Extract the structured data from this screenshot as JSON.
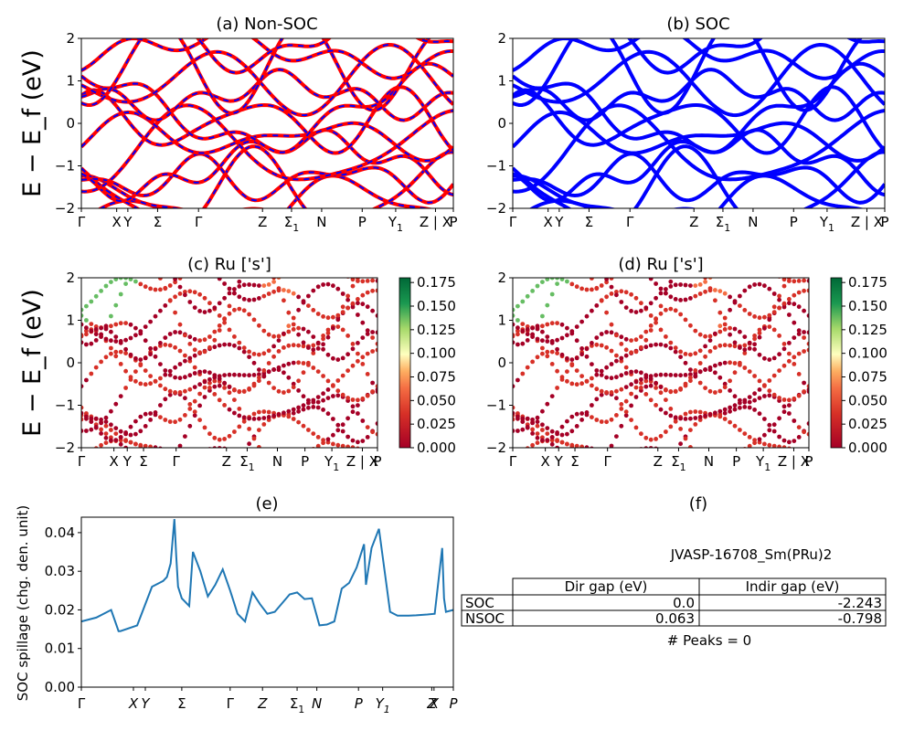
{
  "figure": {
    "title_a": "(a) Non-SOC",
    "title_b": "(b) SOC",
    "title_c": "(c)  Ru ['s']",
    "title_d": "(d) Ru ['s']",
    "title_e": "(e)",
    "title_f": "(f)",
    "ylabel_band": "E − E_f (eV)",
    "ylabel_spill": "SOC spillage (chg. den. unit)",
    "kpath_labels": [
      "Γ",
      "X",
      "Y",
      "Σ",
      "Γ",
      "Z",
      "Σ1",
      "N",
      "P",
      "Y1",
      "Z | X",
      "P"
    ],
    "e_xticks": [
      "Γ",
      "X",
      "Y",
      "Σ",
      "Γ",
      "Z",
      "Σ1",
      "N",
      "P",
      "Y1",
      "Z",
      "X",
      "P"
    ],
    "band_yticks": [
      "2",
      "1",
      "0",
      "−1",
      "−2"
    ],
    "colorbar_ticks": [
      "0.175",
      "0.150",
      "0.125",
      "0.100",
      "0.075",
      "0.050",
      "0.025",
      "0.000"
    ],
    "spill_yticks": [
      "0.04",
      "0.03",
      "0.02",
      "0.01",
      "0.00"
    ],
    "colors": {
      "nsoc": "#ff0000",
      "nsoc_dash": "#0000ff",
      "soc": "#0000ff",
      "spill": "#1f77b4"
    }
  },
  "panel_f": {
    "material": "JVASP-16708_Sm(PRu)2",
    "col_headers": [
      "Dir gap (eV)",
      "Indir gap (eV)"
    ],
    "rows": [
      {
        "label": "SOC",
        "dir": "0.0",
        "indir": "-2.243"
      },
      {
        "label": "NSOC",
        "dir": "0.063",
        "indir": "-0.798"
      }
    ],
    "peaks": "# Peaks = 0"
  },
  "chart_data": [
    {
      "type": "line",
      "title": "(a) Non-SOC",
      "ylabel": "E − E_f (eV)",
      "ylim": [
        -2,
        2
      ],
      "categories": [
        "Γ",
        "X",
        "Y",
        "Σ",
        "Γ",
        "Z",
        "Σ1",
        "N",
        "P",
        "Y1",
        "Z | X",
        "P"
      ],
      "note_series": "band structure, red solid with blue dashes"
    },
    {
      "type": "line",
      "title": "(b) SOC",
      "ylim": [
        -2,
        2
      ],
      "categories": [
        "Γ",
        "X",
        "Y",
        "Σ",
        "Γ",
        "Z",
        "Σ1",
        "N",
        "P",
        "Y1",
        "Z | X",
        "P"
      ]
    },
    {
      "type": "scatter",
      "title": "(c)  Ru ['s']",
      "ylim": [
        -2,
        2
      ],
      "colorbar_range": [
        0,
        0.18
      ]
    },
    {
      "type": "scatter",
      "title": "(d) Ru ['s']",
      "ylim": [
        -2,
        2
      ],
      "colorbar_range": [
        0,
        0.18
      ]
    },
    {
      "type": "line",
      "title": "(e)",
      "ylabel": "SOC spillage (chg. den. unit)",
      "ylim": [
        0,
        0.044
      ],
      "x": [
        0,
        0.04,
        0.08,
        0.1,
        0.105,
        0.15,
        0.19,
        0.21,
        0.22,
        0.23,
        0.24,
        0.25,
        0.255,
        0.26,
        0.27,
        0.29,
        0.3,
        0.32,
        0.34,
        0.36,
        0.38,
        0.4,
        0.42,
        0.44,
        0.46,
        0.48,
        0.5,
        0.52,
        0.56,
        0.58,
        0.6,
        0.62,
        0.64,
        0.66,
        0.68,
        0.7,
        0.72,
        0.74,
        0.76,
        0.765,
        0.78,
        0.8,
        0.83,
        0.85,
        0.86,
        0.865,
        0.87,
        0.88,
        0.9,
        0.93,
        0.95,
        0.96,
        0.97,
        0.975,
        0.98,
        1.0
      ],
      "y": [
        0.017,
        0.018,
        0.02,
        0.0145,
        0.0145,
        0.016,
        0.026,
        0.027,
        0.0275,
        0.0285,
        0.032,
        0.0435,
        0.034,
        0.026,
        0.023,
        0.021,
        0.035,
        0.03,
        0.0235,
        0.0265,
        0.0305,
        0.025,
        0.019,
        0.017,
        0.0245,
        0.0215,
        0.019,
        0.0195,
        0.024,
        0.0245,
        0.0228,
        0.023,
        0.016,
        0.0162,
        0.017,
        0.0255,
        0.027,
        0.031,
        0.037,
        0.0265,
        0.036,
        0.041,
        0.0195,
        0.0185,
        0.0185,
        0.0185,
        0.0185,
        0.0185,
        0.0186,
        0.0188,
        0.019,
        0.0275,
        0.036,
        0.023,
        0.0195,
        0.02
      ]
    }
  ]
}
